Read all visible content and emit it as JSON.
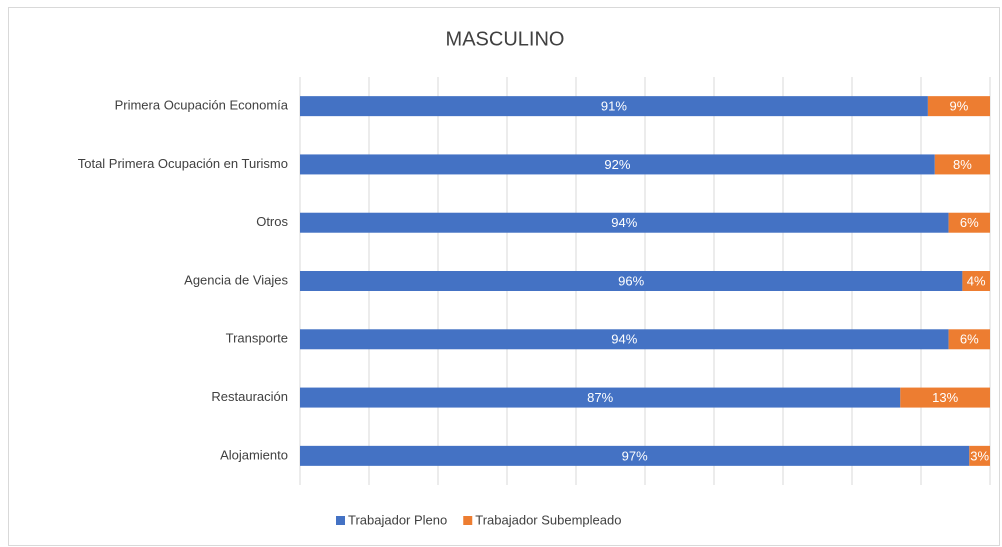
{
  "chart_data": {
    "type": "stacked_bar_horizontal",
    "title": "MASCULINO",
    "categories": [
      "Primera Ocupación Economía",
      "Total Primera Ocupación en Turismo",
      "Otros",
      "Agencia de Viajes",
      "Transporte",
      "Restauración",
      "Alojamiento"
    ],
    "series": [
      {
        "name": "Trabajador Pleno",
        "color": "#4472c4",
        "values": [
          91,
          92,
          94,
          96,
          94,
          87,
          97
        ],
        "value_labels": [
          "91%",
          "92%",
          "94%",
          "96%",
          "94%",
          "87%",
          "97%"
        ]
      },
      {
        "name": "Trabajador Subempleado",
        "color": "#ed7d31",
        "values": [
          9,
          8,
          6,
          4,
          6,
          13,
          3
        ],
        "value_labels": [
          "9%",
          "8%",
          "6%",
          "4%",
          "6%",
          "13%",
          "3%"
        ]
      }
    ],
    "xlim": [
      0,
      100
    ],
    "xticks": [
      0,
      10,
      20,
      30,
      40,
      50,
      60,
      70,
      80,
      90,
      100
    ],
    "grid": true,
    "legend": "bottom"
  }
}
